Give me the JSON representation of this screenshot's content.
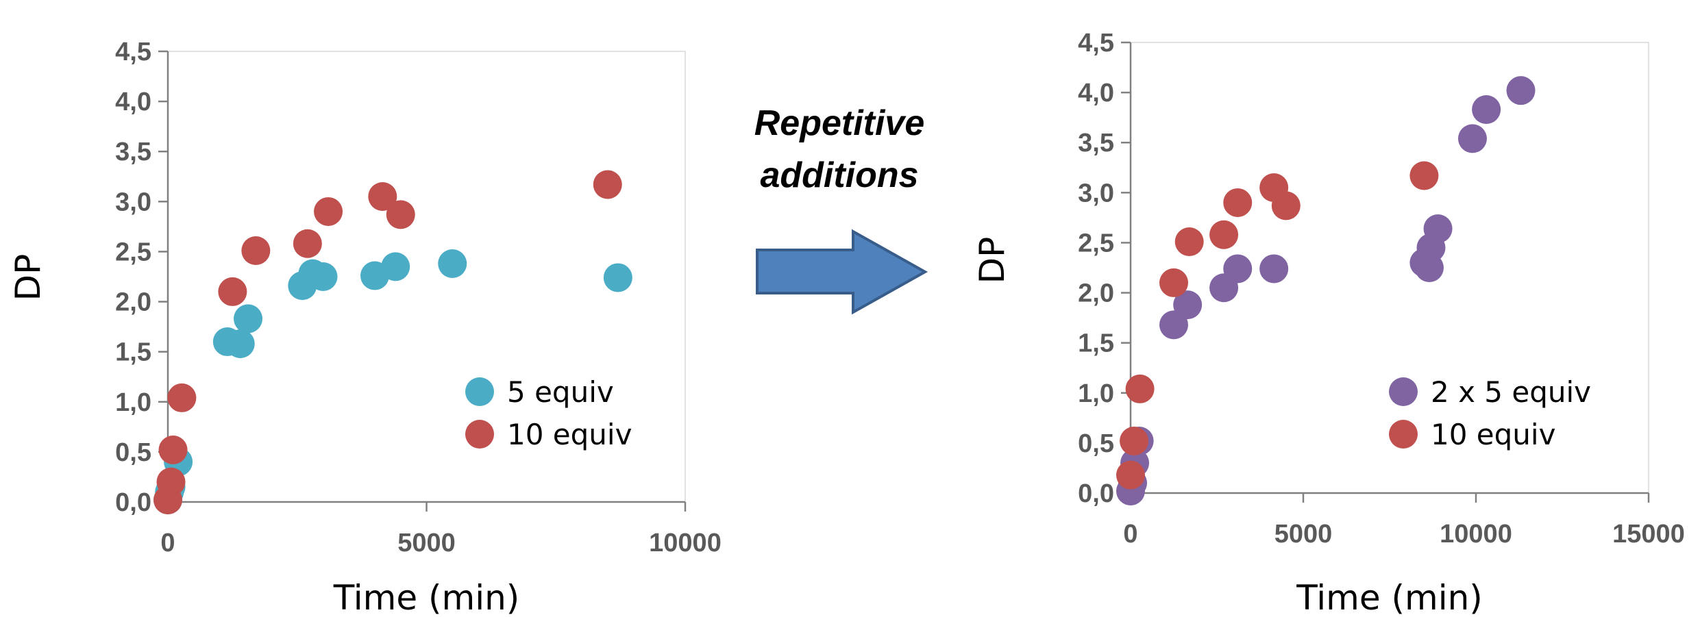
{
  "colors": {
    "blue": "#4BACC6",
    "red": "#C0504D",
    "purple": "#8064A2",
    "arrow_fill": "#4F81BD",
    "arrow_stroke": "#385D8A",
    "axis": "#808080",
    "tick_text": "#595959"
  },
  "annotation": {
    "line1": "Repetitive",
    "line2": "additions"
  },
  "chart_data": [
    {
      "type": "scatter",
      "xlabel": "Time (min)",
      "ylabel": "DP",
      "xlim": [
        0,
        10000
      ],
      "ylim": [
        0,
        4.5
      ],
      "x_ticks": [
        "0",
        "5000",
        "10000"
      ],
      "y_ticks": [
        "0,0",
        "0,5",
        "1,0",
        "1,5",
        "2,0",
        "2,5",
        "3,0",
        "3,5",
        "4,0",
        "4,5"
      ],
      "grid": false,
      "legend_position": "bottom-right",
      "series": [
        {
          "name": "5 equiv",
          "color": "blue",
          "points": [
            [
              0,
              0.02
            ],
            [
              30,
              0.1
            ],
            [
              60,
              0.15
            ],
            [
              200,
              0.4
            ],
            [
              1150,
              1.6
            ],
            [
              1400,
              1.58
            ],
            [
              1550,
              1.83
            ],
            [
              2600,
              2.16
            ],
            [
              2800,
              2.28
            ],
            [
              3000,
              2.25
            ],
            [
              4000,
              2.26
            ],
            [
              4400,
              2.35
            ],
            [
              5500,
              2.38
            ],
            [
              8700,
              2.24
            ]
          ]
        },
        {
          "name": "10 equiv",
          "color": "red",
          "points": [
            [
              0,
              0.02
            ],
            [
              60,
              0.2
            ],
            [
              100,
              0.52
            ],
            [
              270,
              1.04
            ],
            [
              1250,
              2.1
            ],
            [
              1700,
              2.51
            ],
            [
              2700,
              2.58
            ],
            [
              3100,
              2.9
            ],
            [
              4150,
              3.05
            ],
            [
              4500,
              2.87
            ],
            [
              8500,
              3.17
            ]
          ]
        }
      ]
    },
    {
      "type": "scatter",
      "xlabel": "Time (min)",
      "ylabel": "DP",
      "xlim": [
        0,
        15000
      ],
      "ylim": [
        0,
        4.5
      ],
      "x_ticks": [
        "0",
        "5000",
        "10000",
        "15000"
      ],
      "y_ticks": [
        "0,0",
        "0,5",
        "1,0",
        "1,5",
        "2,0",
        "2,5",
        "3,0",
        "3,5",
        "4,0",
        "4,5"
      ],
      "grid": false,
      "legend_position": "bottom-right",
      "series": [
        {
          "name": "2 x 5 equiv",
          "color": "purple",
          "points": [
            [
              0,
              0.02
            ],
            [
              60,
              0.1
            ],
            [
              120,
              0.3
            ],
            [
              250,
              0.52
            ],
            [
              1250,
              1.68
            ],
            [
              1650,
              1.88
            ],
            [
              2700,
              2.05
            ],
            [
              3100,
              2.24
            ],
            [
              4150,
              2.24
            ],
            [
              8500,
              2.3
            ],
            [
              8650,
              2.25
            ],
            [
              8700,
              2.45
            ],
            [
              8900,
              2.64
            ],
            [
              9900,
              3.54
            ],
            [
              10300,
              3.83
            ],
            [
              11300,
              4.02
            ]
          ]
        },
        {
          "name": "10 equiv",
          "color": "red",
          "points": [
            [
              0,
              0.18
            ],
            [
              100,
              0.52
            ],
            [
              270,
              1.04
            ],
            [
              1250,
              2.1
            ],
            [
              1700,
              2.51
            ],
            [
              2700,
              2.58
            ],
            [
              3100,
              2.9
            ],
            [
              4150,
              3.05
            ],
            [
              4500,
              2.87
            ],
            [
              8500,
              3.17
            ]
          ]
        }
      ]
    }
  ]
}
